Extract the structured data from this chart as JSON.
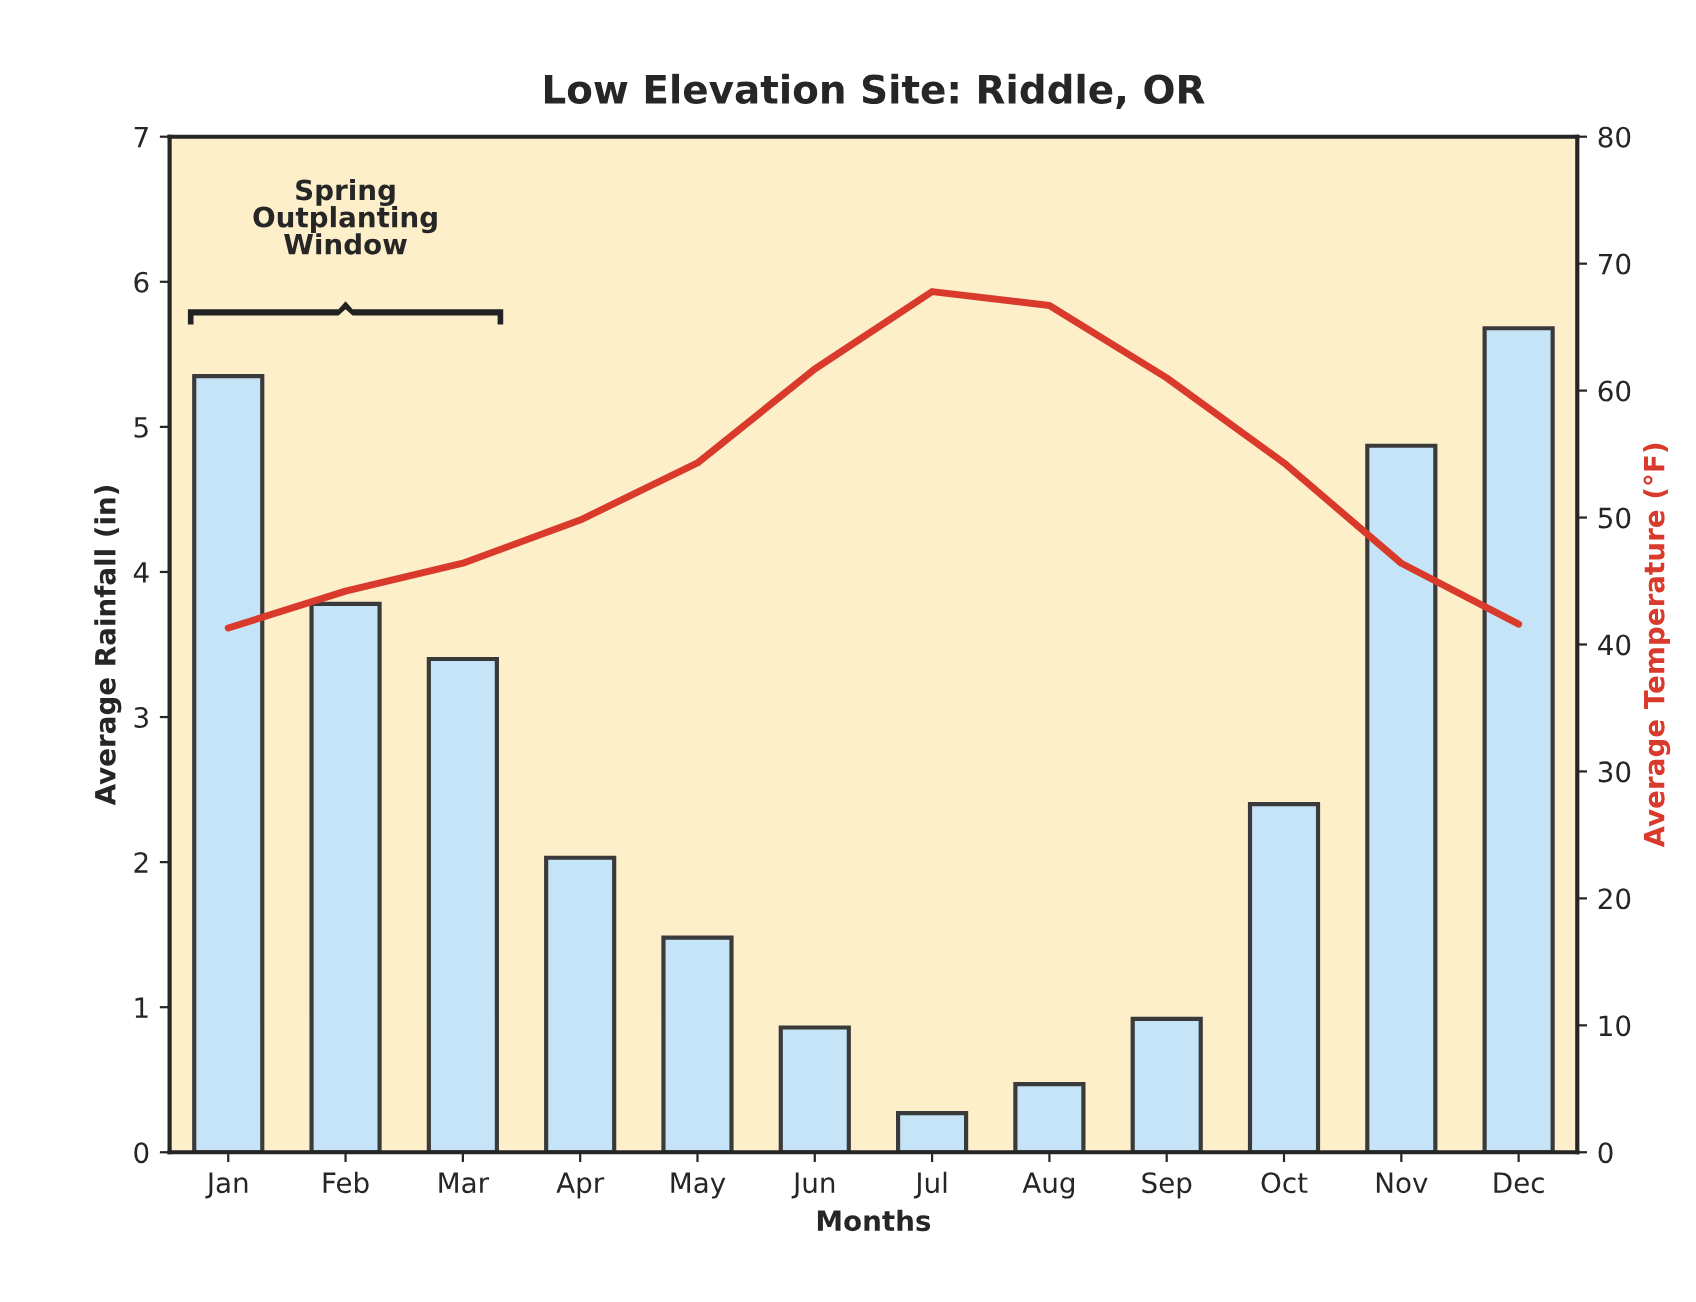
{
  "chart_data": {
    "type": "bar",
    "title": "Low Elevation Site: Riddle, OR",
    "xlabel": "Months",
    "ylabel": "Average Rainfall (in)",
    "y2label": "Average Temperature (°F)",
    "categories": [
      "Jan",
      "Feb",
      "Mar",
      "Apr",
      "May",
      "Jun",
      "Jul",
      "Aug",
      "Sep",
      "Oct",
      "Nov",
      "Dec"
    ],
    "series": [
      {
        "color": "#c6e4f7",
        "values": [
          5.35,
          3.78,
          3.4,
          2.03,
          1.48,
          0.86,
          0.27,
          0.47,
          0.92,
          2.4,
          4.87,
          5.68
        ]
      },
      {
        "type": "line",
        "axis": "y2",
        "color": "#d93a2b",
        "values": [
          41.3,
          44.2,
          46.4,
          49.8,
          54.3,
          61.7,
          67.8,
          66.7,
          61.0,
          54.3,
          46.4,
          41.6
        ]
      }
    ],
    "ylim": [
      0,
      7
    ],
    "yticks": [
      0,
      1,
      2,
      3,
      4,
      5,
      6,
      7
    ],
    "y2lim": [
      0,
      80
    ],
    "y2ticks": [
      0,
      10,
      20,
      30,
      40,
      50,
      60,
      70,
      80
    ],
    "annotations": [
      "Spring Outplanting Window"
    ],
    "grid": false,
    "legend": false
  }
}
